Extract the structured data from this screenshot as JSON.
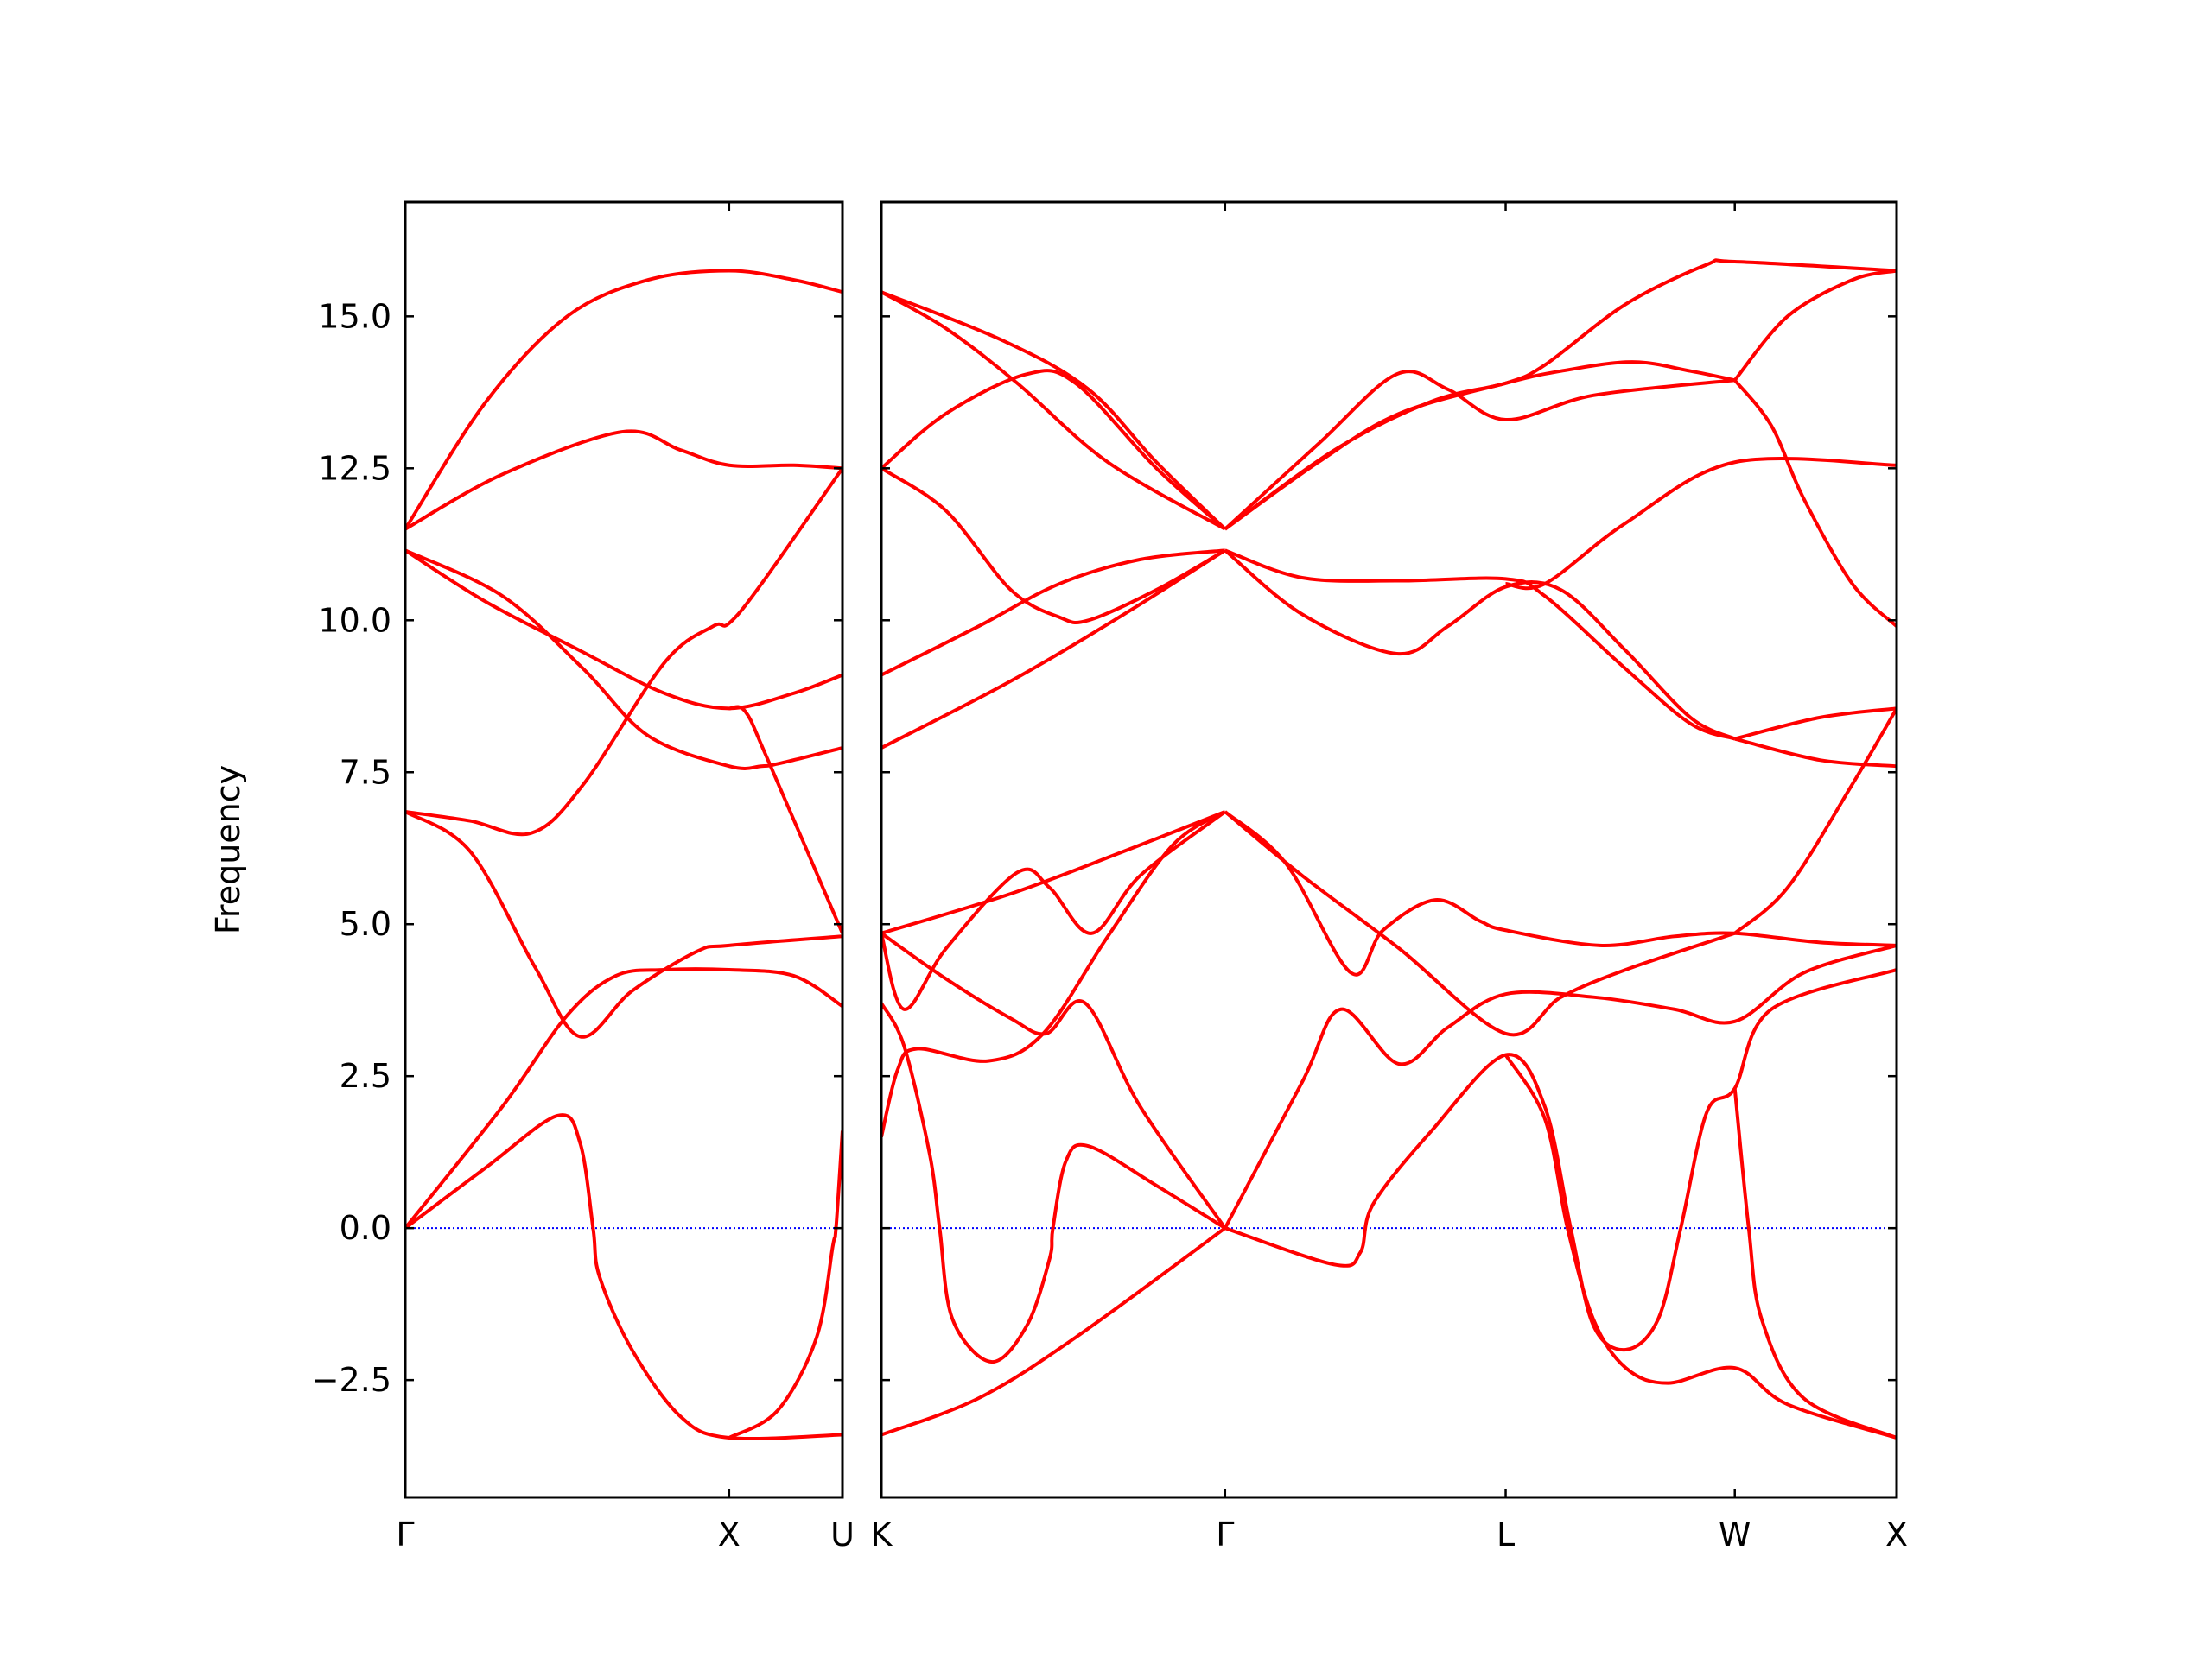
{
  "chart_data": [
    {
      "type": "line",
      "y_label": "Frequency",
      "color": "#ff0000",
      "zero_line_color": "#0000ff",
      "xlim": [
        0,
        1.35
      ],
      "xticks": [
        {
          "value": 0,
          "label": "Γ"
        },
        {
          "value": 1,
          "label": "X"
        },
        {
          "value": 1.35,
          "label": "U"
        }
      ],
      "ylim": [
        -4.43,
        16.88
      ],
      "yticks": [
        {
          "value": -2.5,
          "label": "−2.5"
        },
        {
          "value": 0,
          "label": "0.0"
        },
        2.5,
        {
          "value": 5,
          "label": "5.0"
        },
        7.5,
        {
          "value": 10,
          "label": "10.0"
        },
        12.5,
        {
          "value": 15,
          "label": "15.0"
        }
      ],
      "series": [
        {
          "x": [
            0,
            0.25,
            0.5,
            0.75,
            1,
            1.2,
            1.35
          ],
          "values": [
            11.5,
            13.6,
            15.0,
            15.6,
            15.75,
            15.6,
            15.4
          ]
        },
        {
          "x": [
            0,
            0.3,
            0.67,
            0.85,
            1,
            1.2,
            1.35
          ],
          "values": [
            11.5,
            12.4,
            13.1,
            12.8,
            12.55,
            12.55,
            12.5
          ]
        },
        {
          "x": [
            0,
            0.25,
            0.54,
            0.8,
            1,
            1.2,
            1.35
          ],
          "values": [
            11.15,
            10.3,
            9.5,
            8.8,
            8.55,
            8.8,
            9.1
          ]
        },
        {
          "x": [
            0,
            0.3,
            0.55,
            0.75,
            1,
            1.1,
            1.16,
            1.35
          ],
          "values": [
            11.15,
            10.4,
            9.2,
            8.1,
            7.6,
            7.6,
            7.65,
            7.9
          ]
        },
        {
          "x": [
            0,
            0.2,
            0.39,
            0.55,
            0.8,
            0.95,
            1,
            1.1,
            1.35
          ],
          "values": [
            6.85,
            6.7,
            6.5,
            7.3,
            9.3,
            9.9,
            9.95,
            10.6,
            12.5
          ]
        },
        {
          "x": [
            1,
            1.05,
            1.12,
            1.35
          ],
          "values": [
            8.55,
            8.5,
            7.7,
            4.85
          ]
        },
        {
          "x": [
            0,
            0.2,
            0.4,
            0.54,
            0.7,
            0.9,
            1,
            1.35
          ],
          "values": [
            6.85,
            6.2,
            4.3,
            3.15,
            3.9,
            4.55,
            4.65,
            4.8
          ]
        },
        {
          "x": [
            0,
            0.3,
            0.5,
            0.65,
            0.8,
            1,
            1.2,
            1.35
          ],
          "values": [
            0,
            2.0,
            3.5,
            4.15,
            4.25,
            4.25,
            4.15,
            3.65
          ]
        },
        {
          "x": [
            0,
            0.25,
            0.47,
            0.54,
            0.58,
            0.6,
            0.7,
            0.85,
            1,
            1.35
          ],
          "values": [
            0,
            1.0,
            1.85,
            1.4,
            0,
            -0.8,
            -2.0,
            -3.1,
            -3.45,
            -3.4
          ]
        },
        {
          "x": [
            1,
            1.15,
            1.27,
            1.32,
            1.33,
            1.35
          ],
          "values": [
            -3.45,
            -3.0,
            -1.8,
            -0.3,
            0,
            1.6
          ]
        }
      ]
    },
    {
      "type": "line",
      "color": "#ff0000",
      "zero_line_color": "#0000ff",
      "xlim": [
        0,
        3.137
      ],
      "xticks": [
        {
          "value": 0,
          "label": "K"
        },
        {
          "value": 1.062,
          "label": "Γ"
        },
        {
          "value": 1.929,
          "label": "L"
        },
        {
          "value": 2.637,
          "label": "W"
        },
        {
          "value": 3.137,
          "label": "X"
        }
      ],
      "ylim": [
        -4.43,
        16.88
      ],
      "yticks": [
        -2.5,
        0,
        2.5,
        5,
        7.5,
        10,
        12.5,
        15
      ],
      "series": [
        {
          "x": [
            0,
            0.376,
            0.64,
            0.85,
            1.062
          ],
          "values": [
            15.4,
            14.6,
            13.8,
            12.6,
            11.5
          ]
        },
        {
          "x": [
            0,
            0.2,
            0.42,
            0.7,
            1.062
          ],
          "values": [
            15.4,
            14.8,
            13.9,
            12.6,
            11.5
          ]
        },
        {
          "x": [
            0,
            0.2,
            0.45,
            0.6,
            0.85,
            1.062
          ],
          "values": [
            12.5,
            13.4,
            14.05,
            13.9,
            12.5,
            11.5
          ]
        },
        {
          "x": [
            0,
            0.2,
            0.4,
            0.55,
            0.64,
            0.85,
            1.062
          ],
          "values": [
            12.5,
            11.8,
            10.5,
            10.05,
            10.0,
            10.5,
            11.15
          ]
        },
        {
          "x": [
            0,
            0.3,
            0.55,
            0.8,
            1.062
          ],
          "values": [
            9.1,
            9.9,
            10.6,
            11.0,
            11.15
          ]
        },
        {
          "x": [
            0,
            0.4,
            0.75,
            1.062
          ],
          "values": [
            7.9,
            9.0,
            10.1,
            11.15
          ]
        },
        {
          "x": [
            0,
            0.4,
            0.75,
            1.062
          ],
          "values": [
            4.85,
            5.5,
            6.2,
            6.85
          ]
        },
        {
          "x": [
            0,
            0.07,
            0.2,
            0.42,
            0.52,
            0.65,
            0.8,
            1.062
          ],
          "values": [
            4.85,
            3.6,
            4.6,
            5.85,
            5.6,
            4.85,
            5.8,
            6.85
          ]
        },
        {
          "x": [
            0,
            0.2,
            0.4,
            0.51,
            0.63,
            0.8,
            1.062
          ],
          "values": [
            4.85,
            4.1,
            3.45,
            3.2,
            3.7,
            2.0,
            0
          ]
        },
        {
          "x": [
            0,
            0.07,
            0.15,
            0.18,
            0.22,
            0.34,
            0.45,
            0.52,
            0.53,
            0.57,
            0.64,
            0.85,
            1.062
          ],
          "values": [
            3.7,
            3.0,
            1.2,
            0,
            -1.5,
            -2.2,
            -1.6,
            -0.5,
            0,
            1.1,
            1.35,
            0.7,
            0
          ]
        },
        {
          "x": [
            0,
            0.05,
            0.11,
            0.33,
            0.5,
            0.7,
            0.9,
            1.062
          ],
          "values": [
            1.5,
            2.6,
            2.95,
            2.75,
            3.2,
            4.8,
            6.3,
            6.85
          ]
        },
        {
          "x": [
            0,
            0.3,
            0.6,
            1.062
          ],
          "values": [
            -3.4,
            -2.8,
            -1.8,
            0
          ]
        },
        {
          "x": [
            1.062,
            1.35,
            1.593,
            1.75,
            1.929,
            2.2,
            2.637
          ],
          "values": [
            11.5,
            12.9,
            14.05,
            13.8,
            13.3,
            13.7,
            13.95
          ]
        },
        {
          "x": [
            1.062,
            1.4,
            1.7,
            1.929,
            2.05,
            2.3,
            2.55,
            2.637,
            3.137
          ],
          "values": [
            11.5,
            12.8,
            13.6,
            13.9,
            14.2,
            15.2,
            15.85,
            15.9,
            15.75
          ]
        },
        {
          "x": [
            1.062,
            1.35,
            1.6,
            1.929,
            2.1,
            2.32,
            2.5,
            2.637
          ],
          "values": [
            11.5,
            12.6,
            13.4,
            13.9,
            14.1,
            14.25,
            14.1,
            13.95
          ]
        },
        {
          "x": [
            2.637,
            2.8,
            3.0,
            3.137
          ],
          "values": [
            13.95,
            15.0,
            15.6,
            15.75
          ]
        },
        {
          "x": [
            2.637,
            2.75,
            2.85,
            3.0,
            3.137
          ],
          "values": [
            13.95,
            13.2,
            12.0,
            10.6,
            9.9
          ]
        },
        {
          "x": [
            1.929,
            2.05,
            2.3,
            2.637,
            3.137
          ],
          "values": [
            10.6,
            10.6,
            11.6,
            12.6,
            12.55
          ]
        },
        {
          "x": [
            1.062,
            1.3,
            1.6,
            1.929,
            2.05,
            2.3,
            2.5,
            2.637
          ],
          "values": [
            11.15,
            10.7,
            10.65,
            10.68,
            10.4,
            9.2,
            8.3,
            8.05
          ]
        },
        {
          "x": [
            1.062,
            1.3,
            1.593,
            1.75,
            1.929,
            2.1,
            2.3,
            2.5,
            2.637
          ],
          "values": [
            11.15,
            10.1,
            9.45,
            9.9,
            10.55,
            10.5,
            9.5,
            8.4,
            8.05
          ]
        },
        {
          "x": [
            2.637,
            2.9,
            3.137
          ],
          "values": [
            8.05,
            8.4,
            8.55
          ]
        },
        {
          "x": [
            2.637,
            2.9,
            3.137
          ],
          "values": [
            8.05,
            7.7,
            7.6
          ]
        },
        {
          "x": [
            1.062,
            1.25,
            1.451,
            1.55,
            1.712,
            1.85,
            1.929,
            2.22,
            2.45,
            2.637,
            2.9,
            3.137
          ],
          "values": [
            6.85,
            6.0,
            4.2,
            4.9,
            5.4,
            5.05,
            4.9,
            4.65,
            4.8,
            4.85,
            4.7,
            4.65
          ]
        },
        {
          "x": [
            1.062,
            1.3,
            1.6,
            1.929,
            2.1,
            2.3,
            2.637
          ],
          "values": [
            6.85,
            5.8,
            4.6,
            3.2,
            3.8,
            4.25,
            4.85
          ]
        },
        {
          "x": [
            1.062,
            1.3,
            1.42,
            1.6,
            1.75,
            1.929,
            2.2,
            2.45,
            2.637,
            2.85,
            3.137
          ],
          "values": [
            0,
            2.4,
            3.6,
            2.7,
            3.3,
            3.85,
            3.8,
            3.6,
            3.4,
            4.2,
            4.65
          ]
        },
        {
          "x": [
            1.062,
            1.4,
            1.48,
            1.52,
            1.7,
            1.929,
            2.05,
            2.13,
            2.2,
            2.3,
            2.4,
            2.47,
            2.55,
            2.637,
            2.75,
            3.137
          ],
          "values": [
            0,
            -0.6,
            -0.4,
            0.4,
            1.6,
            2.85,
            2.0,
            0,
            -1.6,
            -2.0,
            -1.5,
            0,
            1.9,
            2.3,
            3.6,
            4.25
          ]
        },
        {
          "x": [
            1.929,
            2.05,
            2.12,
            2.2,
            2.3,
            2.43,
            2.637,
            2.8,
            3.137
          ],
          "values": [
            2.85,
            1.8,
            0,
            -1.5,
            -2.3,
            -2.55,
            -2.3,
            -2.9,
            -3.45
          ]
        },
        {
          "x": [
            2.637,
            2.68,
            2.72,
            2.85,
            3.137
          ],
          "values": [
            2.3,
            0,
            -1.5,
            -2.8,
            -3.45
          ]
        },
        {
          "x": [
            2.637,
            2.8,
            3.0,
            3.137
          ],
          "values": [
            4.85,
            5.6,
            7.3,
            8.55
          ]
        }
      ]
    }
  ]
}
